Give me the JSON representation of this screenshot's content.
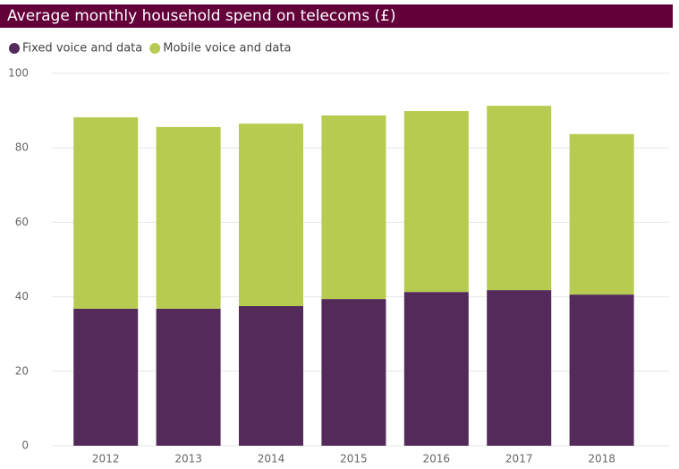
{
  "chart_data": {
    "type": "stacked_bar",
    "title": "Average monthly household spend on telecoms (£)",
    "categories": [
      "2012",
      "2013",
      "2014",
      "2015",
      "2016",
      "2017",
      "2018"
    ],
    "series": [
      {
        "name": "Fixed voice and data",
        "color": "#532a5a",
        "values": [
          36.8,
          36.8,
          37.5,
          39.4,
          41.3,
          41.8,
          40.6
        ]
      },
      {
        "name": "Mobile voice and data",
        "color": "#b7cb51",
        "values": [
          51.4,
          48.8,
          49.0,
          49.3,
          48.6,
          49.5,
          43.1
        ]
      }
    ],
    "ylim": [
      0,
      100
    ],
    "yticks": [
      0,
      20,
      40,
      60,
      80,
      100
    ],
    "grid": true
  }
}
